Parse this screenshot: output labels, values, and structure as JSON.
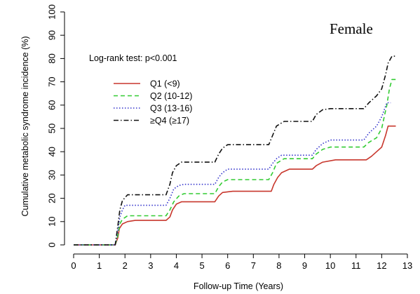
{
  "chart_data": {
    "type": "line",
    "title": "Female",
    "xlabel": "Follow-up Time (Years)",
    "ylabel": "Cumulative metabolic syndrome incidence (%)",
    "annotation": "Log-rank test: p<0.001",
    "xlim": [
      0,
      13
    ],
    "ylim": [
      0,
      100
    ],
    "xticks": [
      "0",
      "1",
      "2",
      "3",
      "4",
      "5",
      "6",
      "7",
      "8",
      "9",
      "10",
      "11",
      "12",
      "13"
    ],
    "yticks": [
      "0",
      "10",
      "20",
      "30",
      "40",
      "50",
      "60",
      "70",
      "80",
      "90",
      "100"
    ],
    "grid": false,
    "legend_position": "upper-left",
    "series": [
      {
        "name": "Q1 (<9)",
        "color": "#c8372d",
        "dash": "solid",
        "points": [
          [
            0,
            0
          ],
          [
            1.5,
            0
          ],
          [
            1.62,
            0
          ],
          [
            1.72,
            3
          ],
          [
            1.78,
            7
          ],
          [
            1.9,
            9
          ],
          [
            2.1,
            10
          ],
          [
            2.4,
            10.5
          ],
          [
            3.6,
            10.5
          ],
          [
            3.75,
            12
          ],
          [
            3.85,
            15
          ],
          [
            4.0,
            17.5
          ],
          [
            4.2,
            18.5
          ],
          [
            5.5,
            18.5
          ],
          [
            5.65,
            21
          ],
          [
            5.8,
            22.5
          ],
          [
            6.2,
            23
          ],
          [
            7.7,
            23
          ],
          [
            7.8,
            26
          ],
          [
            7.95,
            29
          ],
          [
            8.1,
            31
          ],
          [
            8.4,
            32.5
          ],
          [
            9.3,
            32.5
          ],
          [
            9.45,
            34
          ],
          [
            9.7,
            35.5
          ],
          [
            10.2,
            36.5
          ],
          [
            11.4,
            36.5
          ],
          [
            11.6,
            38
          ],
          [
            11.8,
            40
          ],
          [
            12.0,
            42
          ],
          [
            12.15,
            47
          ],
          [
            12.25,
            51
          ],
          [
            12.55,
            51
          ]
        ]
      },
      {
        "name": "Q2 (10-12)",
        "color": "#33cc33",
        "dash": "dashed",
        "points": [
          [
            0,
            0
          ],
          [
            1.5,
            0
          ],
          [
            1.62,
            0
          ],
          [
            1.72,
            4
          ],
          [
            1.8,
            9
          ],
          [
            1.9,
            11
          ],
          [
            2.1,
            12.5
          ],
          [
            3.6,
            12.5
          ],
          [
            3.75,
            15
          ],
          [
            3.9,
            18.5
          ],
          [
            4.1,
            21
          ],
          [
            4.3,
            22
          ],
          [
            5.5,
            22
          ],
          [
            5.65,
            25
          ],
          [
            5.8,
            27
          ],
          [
            6.0,
            28
          ],
          [
            7.6,
            28
          ],
          [
            7.75,
            31
          ],
          [
            7.9,
            35
          ],
          [
            8.2,
            37
          ],
          [
            9.3,
            37
          ],
          [
            9.45,
            39
          ],
          [
            9.7,
            41
          ],
          [
            10.0,
            42
          ],
          [
            11.3,
            42
          ],
          [
            11.5,
            44
          ],
          [
            11.8,
            46
          ],
          [
            12.0,
            50
          ],
          [
            12.1,
            55
          ],
          [
            12.2,
            60
          ],
          [
            12.3,
            67
          ],
          [
            12.4,
            71
          ],
          [
            12.55,
            71
          ]
        ]
      },
      {
        "name": "Q3 (13-16)",
        "color": "#3333cc",
        "dash": "dotted",
        "points": [
          [
            0,
            0
          ],
          [
            1.5,
            0
          ],
          [
            1.62,
            0
          ],
          [
            1.72,
            6
          ],
          [
            1.8,
            12
          ],
          [
            1.9,
            15
          ],
          [
            2.0,
            17
          ],
          [
            3.6,
            17
          ],
          [
            3.75,
            20
          ],
          [
            3.9,
            24
          ],
          [
            4.1,
            25.5
          ],
          [
            4.3,
            26
          ],
          [
            5.5,
            26
          ],
          [
            5.65,
            29
          ],
          [
            5.8,
            31
          ],
          [
            6.0,
            32.5
          ],
          [
            7.6,
            32.5
          ],
          [
            7.75,
            35
          ],
          [
            7.9,
            37
          ],
          [
            8.1,
            38.5
          ],
          [
            9.3,
            38.5
          ],
          [
            9.45,
            41
          ],
          [
            9.7,
            43.5
          ],
          [
            10.0,
            45
          ],
          [
            11.3,
            45
          ],
          [
            11.5,
            48
          ],
          [
            11.8,
            51
          ],
          [
            12.0,
            55
          ],
          [
            12.2,
            61
          ],
          [
            12.35,
            61
          ]
        ]
      },
      {
        "name": "≥Q4 (≥17)",
        "color": "#111111",
        "dash": "dashdot",
        "points": [
          [
            0,
            0
          ],
          [
            1.5,
            0
          ],
          [
            1.62,
            0
          ],
          [
            1.72,
            8
          ],
          [
            1.8,
            15
          ],
          [
            1.9,
            19
          ],
          [
            2.1,
            21.5
          ],
          [
            3.6,
            21.5
          ],
          [
            3.75,
            26
          ],
          [
            3.85,
            31
          ],
          [
            4.0,
            34
          ],
          [
            4.2,
            35.5
          ],
          [
            5.5,
            35.5
          ],
          [
            5.65,
            39
          ],
          [
            5.8,
            41.5
          ],
          [
            6.0,
            43
          ],
          [
            7.6,
            43
          ],
          [
            7.75,
            47
          ],
          [
            7.9,
            51
          ],
          [
            8.2,
            53
          ],
          [
            9.3,
            53
          ],
          [
            9.45,
            56
          ],
          [
            9.7,
            58
          ],
          [
            10.0,
            58.5
          ],
          [
            11.3,
            58.5
          ],
          [
            11.5,
            61
          ],
          [
            11.8,
            64
          ],
          [
            12.0,
            67
          ],
          [
            12.15,
            73
          ],
          [
            12.25,
            78
          ],
          [
            12.4,
            81
          ],
          [
            12.55,
            81
          ]
        ]
      }
    ]
  }
}
